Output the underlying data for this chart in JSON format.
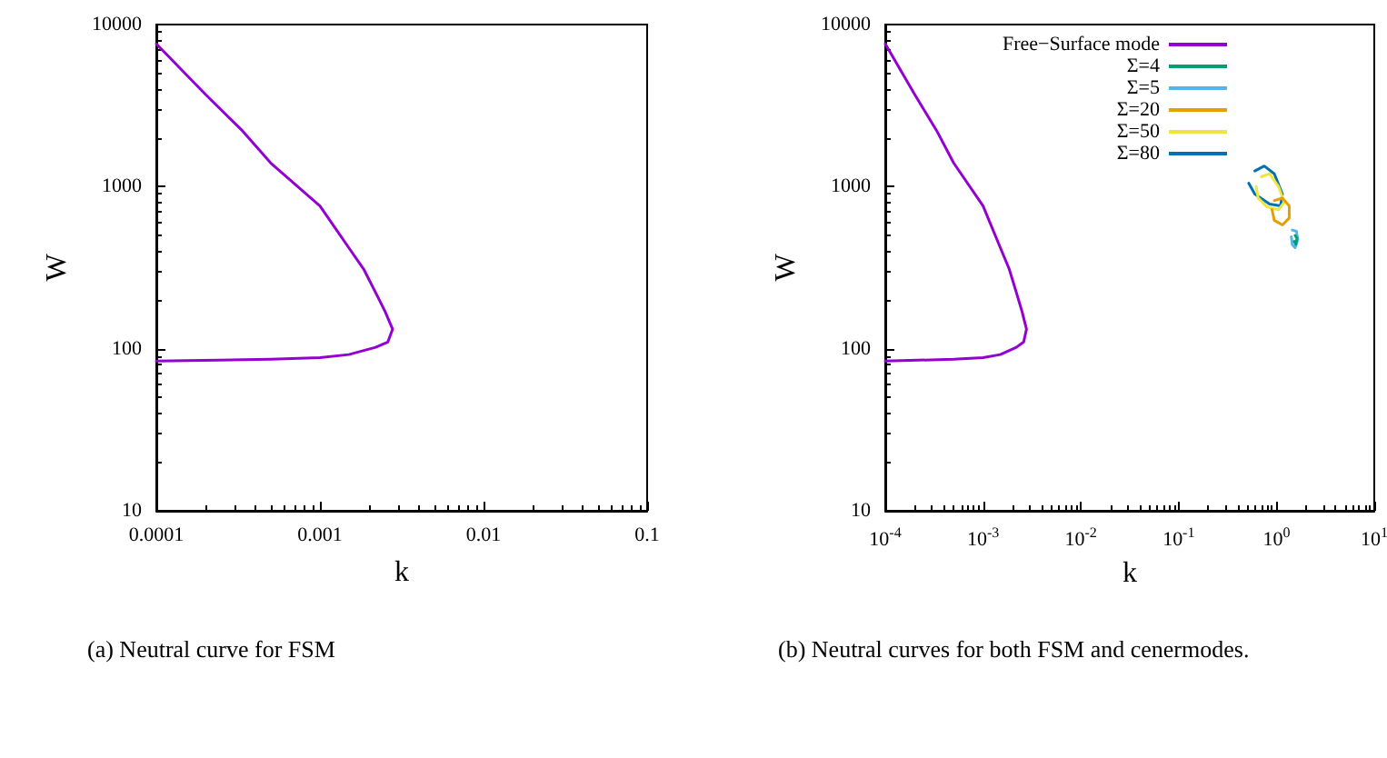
{
  "chart_data": [
    {
      "type": "line",
      "xlabel": "k",
      "ylabel": "W",
      "log": "xy",
      "xlim": [
        0.0001,
        0.1
      ],
      "ylim": [
        10,
        10000
      ],
      "xticks": [
        0.0001,
        0.001,
        0.01,
        0.1
      ],
      "yticks": [
        10,
        100,
        1000,
        10000
      ],
      "grid": false,
      "legend": false,
      "marker": "none",
      "line_style": "solid",
      "series": [
        {
          "color": "#9400d3",
          "x": [
            0.0001,
            0.0002,
            0.000336,
            0.0005,
            0.001,
            0.0015,
            0.00185,
            0.0022,
            0.0025,
            0.00278,
            0.0026,
            0.00219,
            0.0015,
            0.001,
            0.0005,
            0.0001
          ],
          "values": [
            7600,
            3700,
            2210,
            1400,
            760,
            420,
            310,
            220,
            170,
            132,
            110,
            102,
            92,
            88,
            86,
            84
          ]
        }
      ],
      "annotations": [
        "(a) Neutral curve for FSM"
      ]
    },
    {
      "type": "line",
      "xlabel": "k",
      "ylabel": "W",
      "log": "xy",
      "xlim": [
        0.0001,
        10
      ],
      "ylim": [
        10,
        10000
      ],
      "xticks": [
        {
          "value": 0.0001,
          "label": "10$^{-4}$"
        },
        {
          "value": 0.001,
          "label": "10$^{-3}$"
        },
        {
          "value": 0.01,
          "label": "10$^{-2}$"
        },
        {
          "value": 0.1,
          "label": "10$^{-1}$"
        },
        {
          "value": 1,
          "label": "10$^{0}$"
        },
        {
          "value": 10,
          "label": "10$^{1}$"
        }
      ],
      "yticks": [
        10,
        100,
        1000,
        10000
      ],
      "grid": false,
      "legend": "top right",
      "marker": "none",
      "line_style": "solid",
      "series": [
        {
          "name": "Free−Surface mode",
          "color": "#9400d3",
          "x": [
            0.0001,
            0.0002,
            0.000336,
            0.0005,
            0.001,
            0.0015,
            0.00185,
            0.0022,
            0.0025,
            0.00278,
            0.0026,
            0.00219,
            0.0015,
            0.001,
            0.0005,
            0.0001
          ],
          "values": [
            7600,
            3700,
            2210,
            1400,
            760,
            420,
            310,
            220,
            170,
            132,
            110,
            102,
            92,
            88,
            86,
            84
          ]
        },
        {
          "name": "Σ=4",
          "color": "#009e73",
          "x": [
            1.55,
            1.62,
            1.58,
            1.52
          ],
          "values": [
            500,
            480,
            440,
            460
          ]
        },
        {
          "name": "Σ=5",
          "color": "#56b4e9",
          "x": [
            1.45,
            1.6,
            1.65,
            1.55,
            1.45,
            1.42
          ],
          "values": [
            540,
            530,
            470,
            420,
            440,
            490
          ]
        },
        {
          "name": "Σ=20",
          "color": "#e69f00",
          "x": [
            0.95,
            1.15,
            1.35,
            1.35,
            1.15,
            0.95,
            0.9
          ],
          "values": [
            820,
            850,
            760,
            640,
            580,
            620,
            720
          ]
        },
        {
          "name": "Σ=50",
          "color": "#f0e442",
          "x": [
            0.7,
            0.85,
            1.05,
            1.2,
            1.05,
            0.8,
            0.65,
            0.62
          ],
          "values": [
            1150,
            1200,
            1000,
            800,
            720,
            750,
            850,
            1000
          ]
        },
        {
          "name": "Σ=80",
          "color": "#0072b2",
          "x": [
            0.6,
            0.75,
            0.95,
            1.15,
            1.1,
            0.85,
            0.6,
            0.52
          ],
          "values": [
            1250,
            1340,
            1200,
            900,
            760,
            780,
            900,
            1050
          ]
        }
      ],
      "annotations": [
        "(b) Neutral curves for both FSM and cenermodes."
      ]
    }
  ]
}
